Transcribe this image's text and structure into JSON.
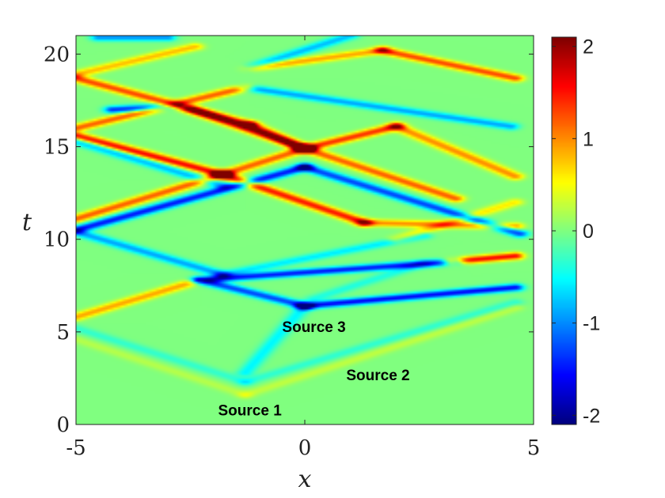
{
  "chart_data": {
    "type": "heatmap",
    "title": "",
    "xlabel": "x",
    "ylabel": "t",
    "xlim": [
      -5,
      5
    ],
    "ylim": [
      0,
      21
    ],
    "x_ticks": [
      -5,
      0,
      5
    ],
    "x_tick_labels": [
      "-5",
      "0",
      "5"
    ],
    "y_ticks": [
      0,
      5,
      10,
      15,
      20
    ],
    "y_tick_labels": [
      "0",
      "5",
      "10",
      "15",
      "20"
    ],
    "colormap": "jet",
    "clim": [
      -2.1,
      2.1
    ],
    "colorbar_ticks": [
      -2,
      -1,
      0,
      1,
      2
    ],
    "colorbar_tick_labels": [
      "-2",
      "-1",
      "0",
      "1",
      "2"
    ],
    "grid": false,
    "annotations": [
      {
        "text": "Source 1",
        "x": -1.2,
        "t": 0.5
      },
      {
        "text": "Source 2",
        "x": 1.6,
        "t": 2.4
      },
      {
        "text": "Source 3",
        "x": 0.2,
        "t": 5.0
      }
    ]
  }
}
